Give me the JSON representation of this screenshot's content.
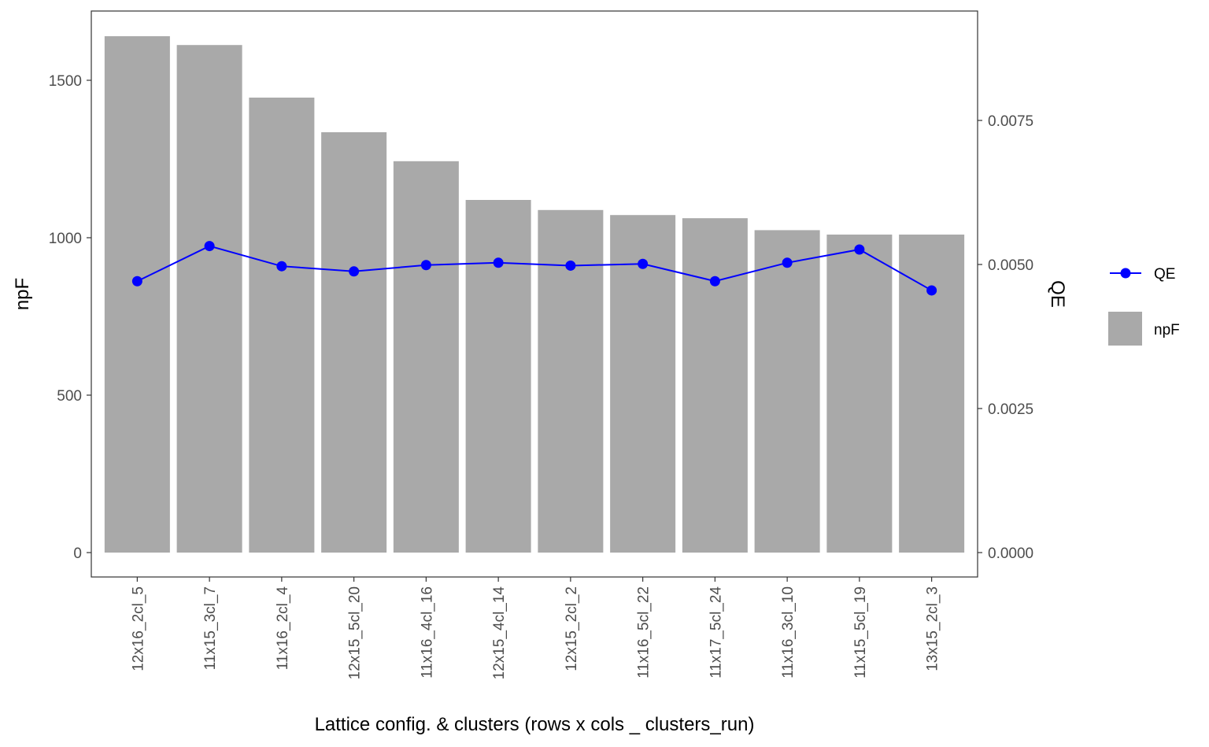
{
  "chart_data": {
    "type": "bar",
    "xlabel": "Lattice config. & clusters (rows x cols _ clusters_run)",
    "ylabel": "npF",
    "y2label": "QE",
    "categories": [
      "12x16_2cl_5",
      "11x15_3cl_7",
      "11x16_2cl_4",
      "12x15_5cl_20",
      "11x16_4cl_16",
      "12x15_4cl_14",
      "12x15_2cl_2",
      "11x16_5cl_22",
      "11x17_5cl_24",
      "11x16_3cl_10",
      "11x15_5cl_19",
      "13x15_2cl_3"
    ],
    "ylim": [
      -80,
      1720
    ],
    "yticks": [
      0,
      500,
      1000,
      1500
    ],
    "y2ticks": [
      "0.0000",
      "0.0025",
      "0.0050",
      "0.0075"
    ],
    "grid": false,
    "legend_position": "right",
    "series": [
      {
        "name": "npF",
        "kind": "bar",
        "color": "#a9a9a9",
        "values": [
          1640,
          1612,
          1445,
          1335,
          1243,
          1120,
          1088,
          1072,
          1062,
          1024,
          1010,
          1010
        ]
      },
      {
        "name": "QE",
        "kind": "line",
        "axis": "right",
        "color": "#0000ff",
        "values": [
          0.00471,
          0.00532,
          0.00497,
          0.00488,
          0.00499,
          0.00503,
          0.00498,
          0.00501,
          0.00471,
          0.00503,
          0.00526,
          0.00455
        ]
      }
    ]
  }
}
